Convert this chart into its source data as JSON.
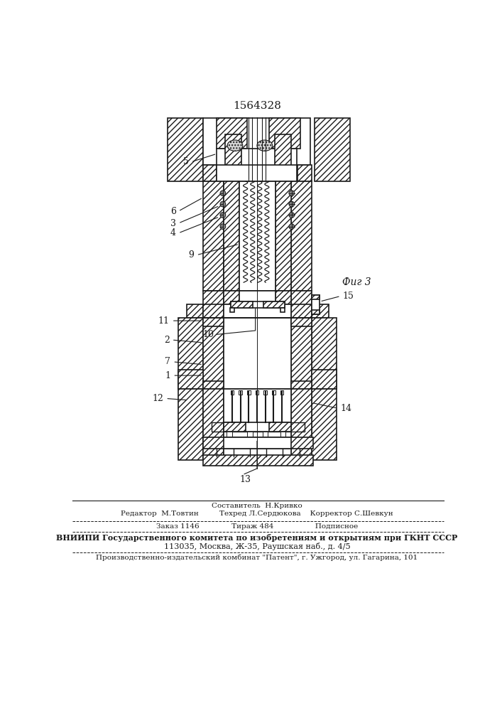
{
  "patent_number": "1564328",
  "fig_label": "Фиг 3",
  "background_color": "#ffffff",
  "line_color": "#1a1a1a",
  "footer_lines": [
    "Составитель  Н.Кривко",
    "Редактор  М.Товтин         Техред Л.Сердюкова    Корректор С.Шевкун",
    "Заказ 1146              Тираж 484                  Подписное",
    "ВНИИПИ Государственного комитета по изобретениям и открытиям при ГКНТ СССР",
    "113035, Москва, Ж-35, Раушская наб., д. 4/5",
    "Производственно-издательский комбинат \"Патент\", г. Ужгород, ул. Гагарина, 101"
  ]
}
